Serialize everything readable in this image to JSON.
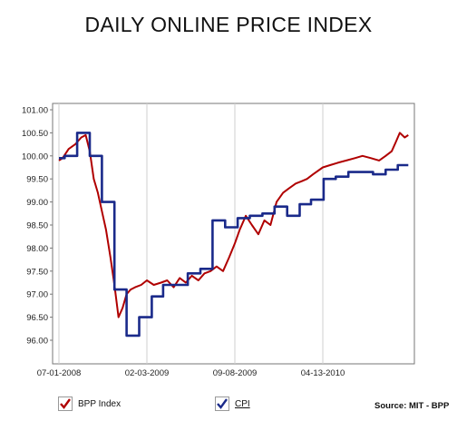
{
  "chart_data": {
    "type": "line",
    "title": "DAILY ONLINE PRICE INDEX",
    "source": "Source: MIT - BPP",
    "xlabel": "",
    "ylabel": "",
    "ylim": [
      95.5,
      101.0
    ],
    "y_ticks": [
      "101.00",
      "100.50",
      "100.00",
      "99.50",
      "99.00",
      "98.50",
      "98.00",
      "97.50",
      "97.00",
      "96.50",
      "96.00"
    ],
    "x_ticks": [
      "07-01-2008",
      "02-03-2009",
      "09-08-2009",
      "04-13-2010"
    ],
    "grid": "vertical",
    "legend_position": "bottom",
    "series": [
      {
        "name": "BPP Index",
        "color": "#b00000",
        "style": "line",
        "x": [
          "2008-07-01",
          "2008-07-10",
          "2008-07-25",
          "2008-08-10",
          "2008-08-25",
          "2008-09-05",
          "2008-09-15",
          "2008-09-25",
          "2008-10-05",
          "2008-10-15",
          "2008-10-25",
          "2008-11-05",
          "2008-11-15",
          "2008-11-25",
          "2008-12-05",
          "2008-12-15",
          "2008-12-25",
          "2009-01-05",
          "2009-01-20",
          "2009-02-03",
          "2009-02-20",
          "2009-03-10",
          "2009-03-25",
          "2009-04-10",
          "2009-04-25",
          "2009-05-10",
          "2009-05-25",
          "2009-06-10",
          "2009-06-25",
          "2009-07-10",
          "2009-07-25",
          "2009-08-10",
          "2009-08-25",
          "2009-09-08",
          "2009-09-20",
          "2009-10-05",
          "2009-10-20",
          "2009-11-05",
          "2009-11-20",
          "2009-12-05",
          "2009-12-20",
          "2010-01-05",
          "2010-01-20",
          "2010-02-05",
          "2010-02-20",
          "2010-03-05",
          "2010-03-20",
          "2010-04-13",
          "2010-05-01",
          "2010-05-20",
          "2010-06-10",
          "2010-07-01",
          "2010-07-20",
          "2010-08-10",
          "2010-08-30",
          "2010-09-15",
          "2010-09-30",
          "2010-10-10",
          "2010-10-20",
          "2010-11-01",
          "2010-11-10"
        ],
        "y": [
          99.9,
          99.95,
          100.15,
          100.25,
          100.4,
          100.45,
          100.1,
          99.5,
          99.2,
          98.8,
          98.4,
          97.8,
          97.2,
          96.5,
          96.7,
          97.0,
          97.1,
          97.15,
          97.2,
          97.3,
          97.2,
          97.25,
          97.3,
          97.15,
          97.35,
          97.25,
          97.4,
          97.3,
          97.45,
          97.5,
          97.6,
          97.5,
          97.8,
          98.1,
          98.4,
          98.7,
          98.5,
          98.3,
          98.6,
          98.5,
          99.0,
          99.2,
          99.3,
          99.4,
          99.45,
          99.5,
          99.6,
          99.75,
          99.8,
          99.85,
          99.9,
          99.95,
          100.0,
          99.95,
          99.9,
          100.0,
          100.1,
          100.3,
          100.5,
          100.4,
          100.45
        ]
      },
      {
        "name": "CPI",
        "color": "#1a2a8a",
        "style": "step",
        "x": [
          "2008-07-01",
          "2008-07-15",
          "2008-08-15",
          "2008-09-15",
          "2008-10-15",
          "2008-11-15",
          "2008-12-15",
          "2009-01-15",
          "2009-02-15",
          "2009-03-15",
          "2009-04-15",
          "2009-05-15",
          "2009-06-15",
          "2009-07-15",
          "2009-08-15",
          "2009-09-15",
          "2009-10-15",
          "2009-11-15",
          "2009-12-15",
          "2010-01-15",
          "2010-02-15",
          "2010-03-15",
          "2010-04-15",
          "2010-05-15",
          "2010-06-15",
          "2010-07-15",
          "2010-08-15",
          "2010-09-15",
          "2010-10-15",
          "2010-11-10"
        ],
        "y": [
          99.95,
          100.0,
          100.5,
          100.0,
          99.0,
          97.1,
          96.1,
          96.5,
          96.95,
          97.2,
          97.2,
          97.45,
          97.55,
          98.6,
          98.45,
          98.65,
          98.7,
          98.75,
          98.9,
          98.7,
          98.95,
          99.05,
          99.5,
          99.55,
          99.65,
          99.65,
          99.6,
          99.7,
          99.8,
          99.8
        ]
      }
    ]
  }
}
